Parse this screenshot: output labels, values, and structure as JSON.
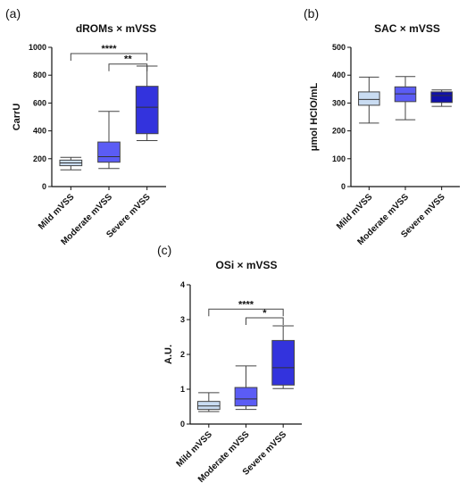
{
  "chart_data": [
    {
      "type": "box",
      "panel_label": "(a)",
      "title": "dROMs × mVSS",
      "ylabel": "CarrU",
      "ylim": [
        0,
        1000
      ],
      "yticks": [
        0,
        200,
        400,
        600,
        800,
        1000
      ],
      "categories": [
        "Mild mVSS",
        "Moderate mVSS",
        "Severe mVSS"
      ],
      "colors": [
        "#c9dcf2",
        "#5b5cf5",
        "#3333dd"
      ],
      "boxes": [
        {
          "min": 120,
          "q1": 150,
          "median": 170,
          "q3": 190,
          "max": 210
        },
        {
          "min": 130,
          "q1": 175,
          "median": 215,
          "q3": 320,
          "max": 540
        },
        {
          "min": 330,
          "q1": 380,
          "median": 570,
          "q3": 720,
          "max": 865
        }
      ],
      "significance": [
        {
          "from": 0,
          "to": 2,
          "label": "****",
          "y": 955
        },
        {
          "from": 1,
          "to": 2,
          "label": "**",
          "y": 880
        }
      ]
    },
    {
      "type": "box",
      "panel_label": "(b)",
      "title": "SAC × mVSS",
      "ylabel": "μmol HClO/mL",
      "ylim": [
        0,
        500
      ],
      "yticks": [
        0,
        100,
        200,
        300,
        400,
        500
      ],
      "categories": [
        "Mild mVSS",
        "Moderate mVSS",
        "Severe mVSS"
      ],
      "colors": [
        "#c9dcf2",
        "#5b5cf5",
        "#1111aa"
      ],
      "boxes": [
        {
          "min": 228,
          "q1": 292,
          "median": 313,
          "q3": 340,
          "max": 393
        },
        {
          "min": 240,
          "q1": 305,
          "median": 333,
          "q3": 358,
          "max": 395
        },
        {
          "min": 288,
          "q1": 302,
          "median": 327,
          "q3": 340,
          "max": 347
        }
      ],
      "significance": []
    },
    {
      "type": "box",
      "panel_label": "(c)",
      "title": "OSi × mVSS",
      "ylabel": "A.U.",
      "ylim": [
        0,
        4
      ],
      "yticks": [
        0,
        1,
        2,
        3,
        4
      ],
      "categories": [
        "Mild mVSS",
        "Moderate mVSS",
        "Severe mVSS"
      ],
      "colors": [
        "#c9dcf2",
        "#5b5cf5",
        "#3333dd"
      ],
      "boxes": [
        {
          "min": 0.36,
          "q1": 0.42,
          "median": 0.52,
          "q3": 0.65,
          "max": 0.9
        },
        {
          "min": 0.42,
          "q1": 0.52,
          "median": 0.72,
          "q3": 1.05,
          "max": 1.67
        },
        {
          "min": 1.02,
          "q1": 1.12,
          "median": 1.62,
          "q3": 2.4,
          "max": 2.82
        }
      ],
      "significance": [
        {
          "from": 0,
          "to": 2,
          "label": "****",
          "y": 3.3
        },
        {
          "from": 1,
          "to": 2,
          "label": "*",
          "y": 3.05
        }
      ]
    }
  ]
}
